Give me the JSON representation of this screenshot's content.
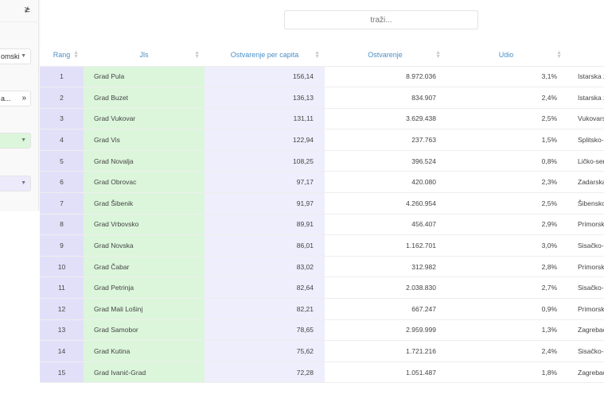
{
  "sidebar": {
    "collapse_icon": "double-chevron-down",
    "select1": "omski",
    "select2": "a...",
    "select2_action": "»",
    "select3": "",
    "select4": ""
  },
  "search": {
    "placeholder": "traži..."
  },
  "table": {
    "headers": [
      "Rang",
      "Jls",
      "Ostvarenje per capita",
      "Ostvarenje",
      "Udio",
      ""
    ],
    "rows": [
      [
        "1",
        "Grad Pula",
        "156,14",
        "8.972.036",
        "3,1%",
        "Istarska ž"
      ],
      [
        "2",
        "Grad Buzet",
        "136,13",
        "834.907",
        "2,4%",
        "Istarska ž"
      ],
      [
        "3",
        "Grad Vukovar",
        "131,11",
        "3.629.438",
        "2,5%",
        "Vukovarsk"
      ],
      [
        "4",
        "Grad Vis",
        "122,94",
        "237.763",
        "1,5%",
        "Splitsko-d"
      ],
      [
        "5",
        "Grad Novalja",
        "108,25",
        "396.524",
        "0,8%",
        "Ličko-senj"
      ],
      [
        "6",
        "Grad Obrovac",
        "97,17",
        "420.080",
        "2,3%",
        "Zadarska"
      ],
      [
        "7",
        "Grad Šibenik",
        "91,97",
        "4.260.954",
        "2,5%",
        "Šibensko-"
      ],
      [
        "8",
        "Grad Vrbovsko",
        "89,91",
        "456.407",
        "2,9%",
        "Primorsko"
      ],
      [
        "9",
        "Grad Novska",
        "86,01",
        "1.162.701",
        "3,0%",
        "Sisačko-m"
      ],
      [
        "10",
        "Grad Čabar",
        "83,02",
        "312.982",
        "2,8%",
        "Primorsko"
      ],
      [
        "11",
        "Grad Petrinja",
        "82,64",
        "2.038.830",
        "2,7%",
        "Sisačko-m"
      ],
      [
        "12",
        "Grad Mali Lošinj",
        "82,21",
        "667.247",
        "0,9%",
        "Primorsko"
      ],
      [
        "13",
        "Grad Samobor",
        "78,65",
        "2.959.999",
        "1,3%",
        "Zagrebačk"
      ],
      [
        "14",
        "Grad Kutina",
        "75,62",
        "1.721.216",
        "2,4%",
        "Sisačko-m"
      ],
      [
        "15",
        "Grad Ivanić-Grad",
        "72,28",
        "1.051.487",
        "1,8%",
        "Zagrebačk"
      ]
    ]
  }
}
